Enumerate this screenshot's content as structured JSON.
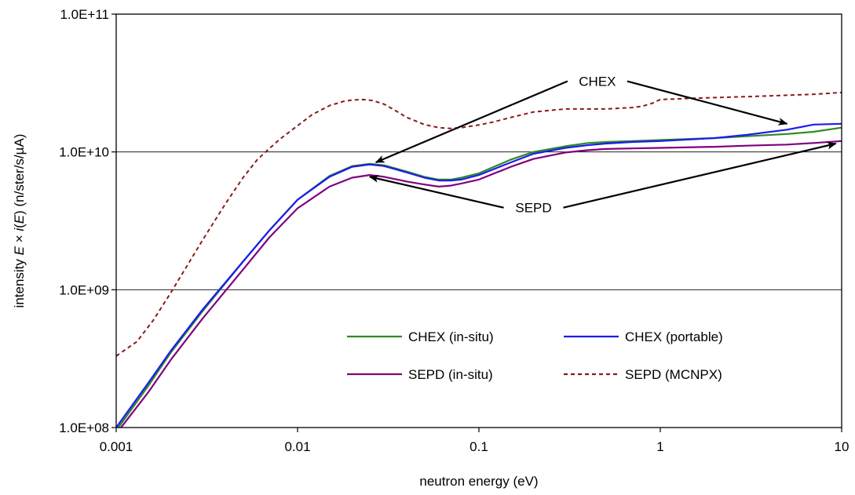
{
  "chart_data": {
    "type": "line",
    "xscale": "log",
    "yscale": "log",
    "xlim": [
      0.001,
      10
    ],
    "ylim": [
      100000000.0,
      100000000000.0
    ],
    "grid": "horizontal major lines",
    "legend_placement": "lower-right inside plot",
    "xlabel": "neutron energy (eV)",
    "ylabel_parts": [
      "intensity ",
      "E",
      " × ",
      "i",
      "(",
      "E",
      ")  (n/ster/s/µA)"
    ],
    "x_ticks": [
      {
        "value": 0.001,
        "label": "0.001"
      },
      {
        "value": 0.01,
        "label": "0.01"
      },
      {
        "value": 0.1,
        "label": "0.1"
      },
      {
        "value": 1,
        "label": "1"
      },
      {
        "value": 10,
        "label": "10"
      }
    ],
    "y_ticks": [
      {
        "value": 100000000.0,
        "label": "1.0E+08"
      },
      {
        "value": 1000000000.0,
        "label": "1.0E+09"
      },
      {
        "value": 10000000000.0,
        "label": "1.0E+10"
      },
      {
        "value": 100000000000.0,
        "label": "1.0E+11"
      }
    ],
    "series": [
      {
        "name": "CHEX (in-situ)",
        "color": "#2e8b22",
        "dash": "solid",
        "x": [
          0.001,
          0.0015,
          0.002,
          0.003,
          0.005,
          0.007,
          0.01,
          0.015,
          0.02,
          0.025,
          0.03,
          0.04,
          0.05,
          0.06,
          0.07,
          0.08,
          0.1,
          0.15,
          0.2,
          0.3,
          0.4,
          0.5,
          0.7,
          1,
          2,
          3,
          5,
          7,
          10
        ],
        "y": [
          95000000.0,
          200000000.0,
          350000000.0,
          700000000.0,
          1600000000.0,
          2700000000.0,
          4500000000.0,
          6700000000.0,
          7900000000.0,
          8200000000.0,
          8000000000.0,
          7200000000.0,
          6600000000.0,
          6300000000.0,
          6300000000.0,
          6500000000.0,
          7000000000.0,
          8800000000.0,
          10000000000.0,
          11000000000.0,
          11600000000.0,
          11800000000.0,
          12000000000.0,
          12200000000.0,
          12600000000.0,
          13000000000.0,
          13500000000.0,
          14000000000.0,
          15000000000.0
        ]
      },
      {
        "name": "CHEX (portable)",
        "color": "#1c1cf0",
        "dash": "solid",
        "x": [
          0.001,
          0.0015,
          0.002,
          0.003,
          0.005,
          0.007,
          0.01,
          0.015,
          0.02,
          0.025,
          0.03,
          0.04,
          0.05,
          0.06,
          0.07,
          0.08,
          0.1,
          0.15,
          0.2,
          0.3,
          0.4,
          0.5,
          0.7,
          1,
          2,
          3,
          5,
          7,
          10
        ],
        "y": [
          100000000.0,
          210000000.0,
          360000000.0,
          720000000.0,
          1600000000.0,
          2700000000.0,
          4500000000.0,
          6600000000.0,
          7800000000.0,
          8100000000.0,
          7900000000.0,
          7100000000.0,
          6500000000.0,
          6200000000.0,
          6200000000.0,
          6300000000.0,
          6800000000.0,
          8400000000.0,
          9700000000.0,
          10700000000.0,
          11200000000.0,
          11500000000.0,
          11800000000.0,
          12000000000.0,
          12600000000.0,
          13300000000.0,
          14500000000.0,
          15800000000.0,
          16000000000.0
        ]
      },
      {
        "name": "SEPD (in-situ)",
        "color": "#800080",
        "dash": "solid",
        "x": [
          0.001,
          0.0015,
          0.002,
          0.003,
          0.005,
          0.007,
          0.01,
          0.015,
          0.02,
          0.025,
          0.03,
          0.04,
          0.05,
          0.06,
          0.07,
          0.08,
          0.1,
          0.15,
          0.2,
          0.3,
          0.4,
          0.5,
          0.7,
          1,
          2,
          3,
          5,
          7,
          10
        ],
        "y": [
          90000000.0,
          180000000.0,
          310000000.0,
          620000000.0,
          1400000000.0,
          2400000000.0,
          3900000000.0,
          5600000000.0,
          6500000000.0,
          6800000000.0,
          6600000000.0,
          6100000000.0,
          5800000000.0,
          5600000000.0,
          5700000000.0,
          5900000000.0,
          6300000000.0,
          7800000000.0,
          8900000000.0,
          9900000000.0,
          10300000000.0,
          10500000000.0,
          10600000000.0,
          10700000000.0,
          10900000000.0,
          11100000000.0,
          11300000000.0,
          11600000000.0,
          12000000000.0
        ]
      },
      {
        "name": "SEPD (MCNPX)",
        "color": "#8b1a1a",
        "dash": "dashed",
        "x": [
          0.001,
          0.0013,
          0.0016,
          0.002,
          0.003,
          0.004,
          0.005,
          0.006,
          0.007,
          0.008,
          0.01,
          0.012,
          0.015,
          0.018,
          0.02,
          0.023,
          0.026,
          0.03,
          0.035,
          0.04,
          0.05,
          0.06,
          0.07,
          0.08,
          0.1,
          0.12,
          0.15,
          0.2,
          0.3,
          0.5,
          0.7,
          0.8,
          0.9,
          1,
          1.5,
          2,
          3,
          5,
          7,
          10
        ],
        "y": [
          330000000.0,
          420000000.0,
          600000000.0,
          950000000.0,
          2300000000.0,
          4200000000.0,
          6500000000.0,
          8800000000.0,
          10600000000.0,
          12400000000.0,
          15500000000.0,
          18600000000.0,
          21700000000.0,
          23300000000.0,
          23800000000.0,
          24000000000.0,
          23600000000.0,
          22200000000.0,
          19800000000.0,
          17800000000.0,
          15800000000.0,
          15000000000.0,
          14800000000.0,
          15000000000.0,
          15700000000.0,
          16500000000.0,
          17800000000.0,
          19500000000.0,
          20500000000.0,
          20500000000.0,
          21000000000.0,
          21500000000.0,
          22500000000.0,
          24000000000.0,
          24500000000.0,
          24800000000.0,
          25200000000.0,
          25800000000.0,
          26200000000.0,
          27000000000.0
        ]
      }
    ],
    "annotations": [
      {
        "text": "CHEX",
        "x": 0.45,
        "y": 32600000000.0,
        "arrows_to": [
          [
            0.027,
            8400000000.0
          ],
          [
            5.0,
            16000000000.0
          ]
        ]
      },
      {
        "text": "SEPD",
        "x": 0.2,
        "y": 3940000000.0,
        "arrows_to": [
          [
            0.025,
            6600000000.0
          ],
          [
            9.3,
            11500000000.0
          ]
        ]
      }
    ]
  }
}
